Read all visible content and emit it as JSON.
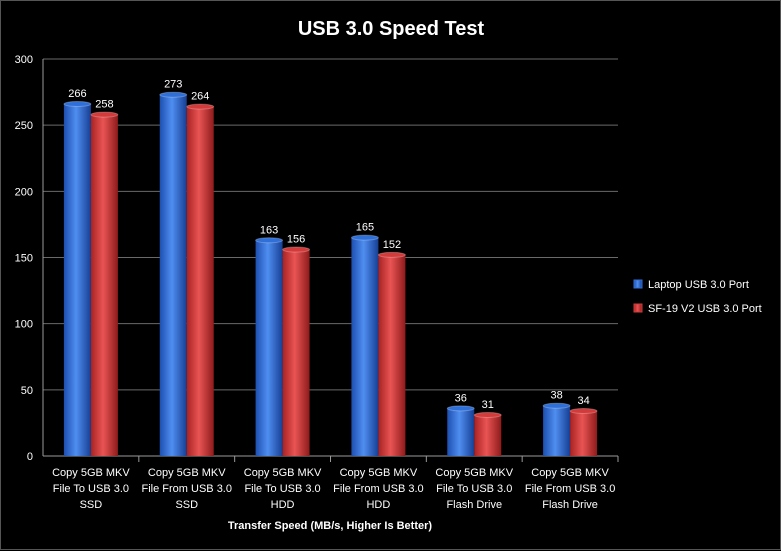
{
  "chart_data": {
    "type": "bar",
    "title": "USB 3.0 Speed Test",
    "xlabel": "Transfer Speed (MB/s, Higher Is Better)",
    "ylabel": "",
    "ylim": [
      0,
      300
    ],
    "yticks": [
      0,
      50,
      100,
      150,
      200,
      250,
      300
    ],
    "grid": true,
    "legend_position": "right",
    "categories": [
      [
        "Copy 5GB MKV",
        "File To USB 3.0",
        "SSD"
      ],
      [
        "Copy 5GB MKV",
        "File From USB 3.0",
        "SSD"
      ],
      [
        "Copy 5GB MKV",
        "File To USB 3.0",
        "HDD"
      ],
      [
        "Copy 5GB MKV",
        "File From USB 3.0",
        "HDD"
      ],
      [
        "Copy 5GB MKV",
        "File To USB 3.0",
        "Flash Drive"
      ],
      [
        "Copy 5GB MKV",
        "File From USB 3.0",
        "Flash Drive"
      ]
    ],
    "series": [
      {
        "name": "Laptop USB 3.0 Port",
        "color": "#2f6fd8",
        "values": [
          266,
          273,
          163,
          165,
          36,
          38
        ]
      },
      {
        "name": "SF-19 V2 USB 3.0 Port",
        "color": "#d43a3a",
        "values": [
          258,
          264,
          156,
          152,
          31,
          34
        ]
      }
    ]
  }
}
